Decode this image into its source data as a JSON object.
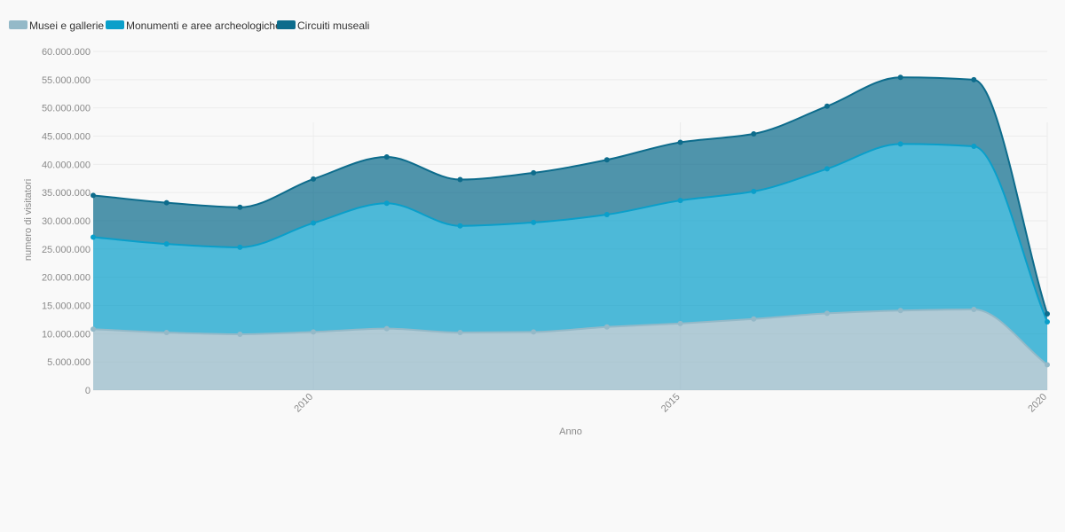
{
  "chart_data": {
    "type": "area",
    "stacked": true,
    "x": [
      2007,
      2008,
      2009,
      2010,
      2011,
      2012,
      2013,
      2014,
      2015,
      2016,
      2017,
      2018,
      2019,
      2020
    ],
    "xlabel": "Anno",
    "ylabel": "numero di visitatori",
    "xlim": [
      2007,
      2020
    ],
    "ylim": [
      0,
      60000000
    ],
    "x_ticks": [
      "2010",
      "2015",
      "2020"
    ],
    "y_ticks": [
      "0",
      "5.000.000",
      "10.000.000",
      "15.000.000",
      "20.000.000",
      "25.000.000",
      "30.000.000",
      "35.000.000",
      "40.000.000",
      "45.000.000",
      "50.000.000",
      "55.000.000",
      "60.000.000"
    ],
    "legend_position": "top-left",
    "grid": true,
    "series": [
      {
        "name": "Musei e gallerie",
        "color": "#94b9c8",
        "values": [
          10800000,
          10200000,
          9900000,
          10300000,
          10900000,
          10200000,
          10300000,
          11200000,
          11800000,
          12600000,
          13600000,
          14100000,
          14300000,
          4500000
        ]
      },
      {
        "name": "Monumenti e aree archeologiche",
        "color": "#0a9fca",
        "values": [
          16300000,
          15700000,
          15400000,
          19300000,
          22200000,
          18900000,
          19400000,
          19900000,
          21800000,
          22600000,
          25600000,
          29500000,
          28900000,
          7600000
        ]
      },
      {
        "name": "Circuiti museali",
        "color": "#0d6c8c",
        "values": [
          7400000,
          7300000,
          7100000,
          7800000,
          8200000,
          8200000,
          8800000,
          9700000,
          10300000,
          10200000,
          11100000,
          11800000,
          11800000,
          1400000
        ]
      }
    ]
  }
}
